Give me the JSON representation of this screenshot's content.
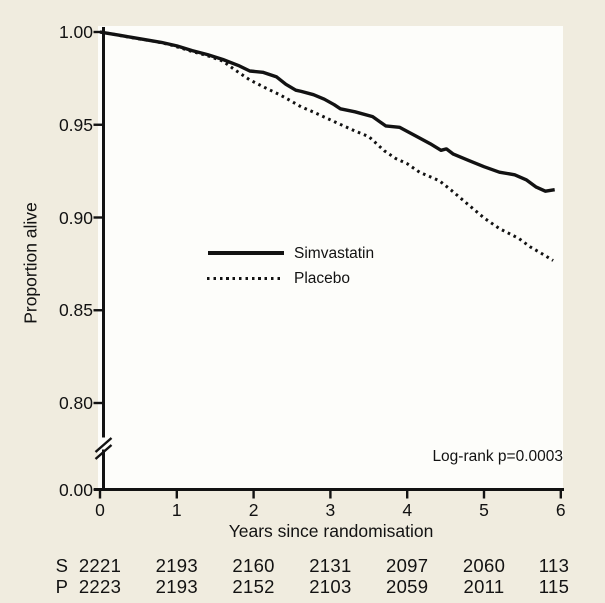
{
  "figure": {
    "background_color": "#f0ecdf",
    "plot_background": "#fdfdfa",
    "ink_color": "#121212"
  },
  "chart_data": {
    "type": "line",
    "subtype": "kaplan-meier-survival",
    "title": "",
    "xlabel": "Years since randomisation",
    "ylabel": "Proportion alive",
    "annotation": "Log-rank p=0.0003",
    "xlim": [
      0,
      6
    ],
    "ylim_upper_segment": [
      0.78,
      1.0
    ],
    "y_axis_break": true,
    "grid": false,
    "legend_position": "center-left-inside",
    "x_ticks": [
      "0",
      "1",
      "2",
      "3",
      "4",
      "5",
      "6"
    ],
    "y_ticks": [
      "1.00",
      "0.95",
      "0.90",
      "0.85",
      "0.80",
      "0.00"
    ],
    "legend": [
      {
        "label": "Simvastatin",
        "style": "solid"
      },
      {
        "label": "Placebo",
        "style": "dotted"
      }
    ],
    "series": [
      {
        "name": "Simvastatin",
        "style": "solid",
        "points": [
          [
            0.0,
            1.0
          ],
          [
            0.1,
            0.9993
          ],
          [
            0.25,
            0.9983
          ],
          [
            0.4,
            0.9972
          ],
          [
            0.6,
            0.9958
          ],
          [
            0.8,
            0.9944
          ],
          [
            1.0,
            0.9925
          ],
          [
            1.2,
            0.99
          ],
          [
            1.4,
            0.9878
          ],
          [
            1.6,
            0.9852
          ],
          [
            1.8,
            0.982
          ],
          [
            1.95,
            0.979
          ],
          [
            2.12,
            0.9783
          ],
          [
            2.3,
            0.9758
          ],
          [
            2.42,
            0.9718
          ],
          [
            2.55,
            0.9686
          ],
          [
            2.62,
            0.968
          ],
          [
            2.78,
            0.9662
          ],
          [
            2.92,
            0.9638
          ],
          [
            3.05,
            0.9608
          ],
          [
            3.13,
            0.9586
          ],
          [
            3.32,
            0.957
          ],
          [
            3.55,
            0.9544
          ],
          [
            3.72,
            0.9494
          ],
          [
            3.9,
            0.9486
          ],
          [
            4.1,
            0.9442
          ],
          [
            4.3,
            0.9398
          ],
          [
            4.44,
            0.9362
          ],
          [
            4.51,
            0.937
          ],
          [
            4.6,
            0.9342
          ],
          [
            4.8,
            0.9308
          ],
          [
            5.0,
            0.9274
          ],
          [
            5.2,
            0.9244
          ],
          [
            5.4,
            0.923
          ],
          [
            5.55,
            0.9203
          ],
          [
            5.68,
            0.9164
          ],
          [
            5.8,
            0.9142
          ],
          [
            5.92,
            0.915
          ]
        ]
      },
      {
        "name": "Placebo",
        "style": "dotted",
        "points": [
          [
            0.0,
            1.0
          ],
          [
            0.15,
            0.999
          ],
          [
            0.3,
            0.9978
          ],
          [
            0.5,
            0.9963
          ],
          [
            0.7,
            0.995
          ],
          [
            0.9,
            0.9933
          ],
          [
            1.0,
            0.992
          ],
          [
            1.2,
            0.9895
          ],
          [
            1.4,
            0.9872
          ],
          [
            1.6,
            0.9843
          ],
          [
            1.75,
            0.9798
          ],
          [
            1.95,
            0.9742
          ],
          [
            2.15,
            0.97
          ],
          [
            2.35,
            0.966
          ],
          [
            2.5,
            0.9625
          ],
          [
            2.62,
            0.9596
          ],
          [
            2.78,
            0.9568
          ],
          [
            3.05,
            0.9517
          ],
          [
            3.3,
            0.947
          ],
          [
            3.5,
            0.9436
          ],
          [
            3.7,
            0.936
          ],
          [
            3.85,
            0.9318
          ],
          [
            4.0,
            0.929
          ],
          [
            4.16,
            0.9244
          ],
          [
            4.42,
            0.9198
          ],
          [
            4.58,
            0.9145
          ],
          [
            4.8,
            0.9068
          ],
          [
            5.0,
            0.8998
          ],
          [
            5.2,
            0.894
          ],
          [
            5.45,
            0.8888
          ],
          [
            5.6,
            0.8842
          ],
          [
            5.75,
            0.8806
          ],
          [
            5.9,
            0.8768
          ]
        ]
      }
    ]
  },
  "risk_table": {
    "rows": [
      {
        "label": "S",
        "values": [
          "2221",
          "2193",
          "2160",
          "2131",
          "2097",
          "2060",
          "113"
        ]
      },
      {
        "label": "P",
        "values": [
          "2223",
          "2193",
          "2152",
          "2103",
          "2059",
          "2011",
          "115"
        ]
      }
    ]
  }
}
